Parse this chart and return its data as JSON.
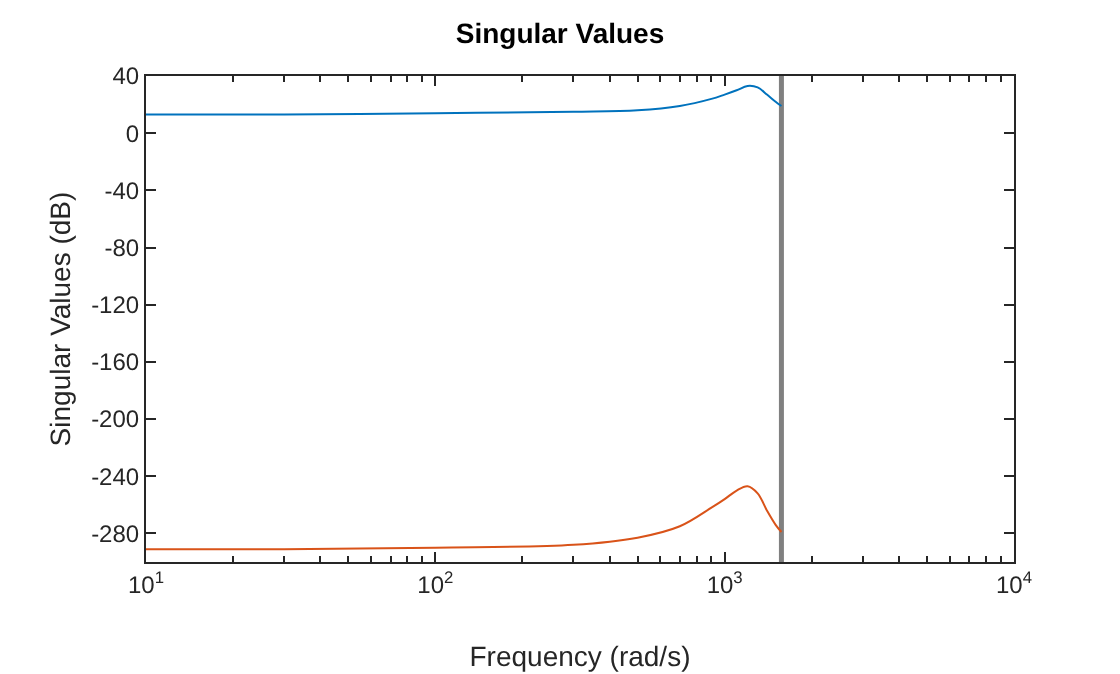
{
  "chart_data": {
    "type": "line",
    "title": "Singular Values",
    "xlabel": "Frequency (rad/s)",
    "ylabel": "Singular Values (dB)",
    "x": [
      10,
      30,
      100,
      300,
      500,
      700,
      900,
      1000,
      1100,
      1200,
      1300,
      1400,
      1500,
      1571
    ],
    "series": [
      {
        "color": "#0072bd",
        "values": [
          13,
          13,
          14,
          15,
          16,
          19,
          24,
          27,
          30,
          33,
          32,
          27,
          22,
          19
        ]
      },
      {
        "color": "#d95319",
        "values": [
          -291,
          -291,
          -290,
          -288,
          -283,
          -275,
          -262,
          -256,
          -250,
          -247,
          -252,
          -264,
          -274,
          -279
        ]
      }
    ],
    "log": "x",
    "xlim": [
      10,
      10000
    ],
    "xticks": [
      {
        "value": 10,
        "label": "10$^{1}$"
      },
      {
        "value": 100,
        "label": "10$^{2}$"
      },
      {
        "value": 1000,
        "label": "10$^{3}$"
      },
      {
        "value": 10000,
        "label": "10$^{4}$"
      }
    ],
    "ylim": [
      -300,
      40
    ],
    "yticks": [
      -280,
      -240,
      -200,
      -160,
      -120,
      -80,
      -40,
      0,
      40
    ],
    "ref_lines": [
      {
        "axis": "x",
        "value": 1571,
        "color": "#808080"
      }
    ],
    "grid": false
  }
}
